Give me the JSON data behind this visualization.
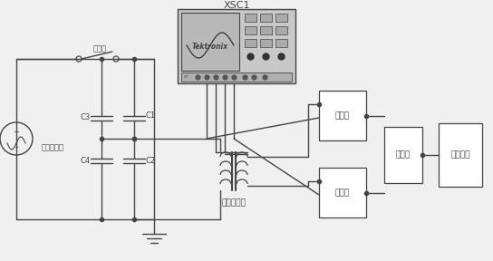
{
  "bg_color": "#f0f0f0",
  "line_color": "#444444",
  "box_fill_osc": "#cccccc",
  "box_fill_white": "#ffffff",
  "fig_width": 5.44,
  "fig_height": 2.88,
  "dpi": 100,
  "labels": {
    "breaker": "断路器",
    "transformer": "试验变压器",
    "c1": "C1",
    "c2": "C2",
    "c3": "C3",
    "c4": "C4",
    "voltage_converter": "电压转换器",
    "collector1": "采集器",
    "collector2": "采集器",
    "combiner": "合并器",
    "recorder": "故障录波",
    "tektronix": "Tektronix",
    "xsc1": "XSC1"
  }
}
